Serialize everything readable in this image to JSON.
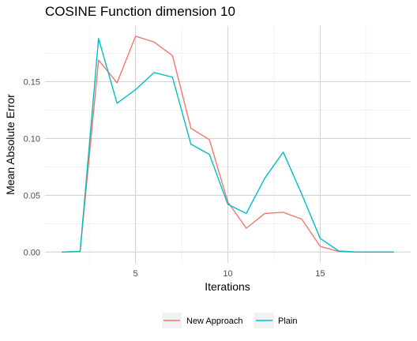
{
  "chart_data": {
    "type": "line",
    "title": "COSINE Function dimension 10",
    "xlabel": "Iterations",
    "ylabel": "Mean Absolute Error",
    "xlim": [
      0.1,
      19.9
    ],
    "ylim": [
      -0.0095,
      0.199
    ],
    "x_ticks": [
      5,
      10,
      15
    ],
    "x_tick_labels": [
      "5",
      "10",
      "15"
    ],
    "x_minor_ticks": [
      2.5,
      7.5,
      12.5,
      17.5
    ],
    "y_ticks": [
      0.0,
      0.05,
      0.1,
      0.15
    ],
    "y_tick_labels": [
      "0.00",
      "0.05",
      "0.10",
      "0.15"
    ],
    "y_minor_ticks": [
      0.025,
      0.075,
      0.125,
      0.175
    ],
    "grid": true,
    "legend_position": "bottom",
    "x": [
      1,
      2,
      3,
      4,
      5,
      6,
      7,
      8,
      9,
      10,
      11,
      12,
      13,
      14,
      15,
      16,
      17,
      18,
      19
    ],
    "series": [
      {
        "name": "New Approach",
        "color": "#F8766D",
        "values": [
          0.0,
          0.0005,
          0.169,
          0.149,
          0.19,
          0.185,
          0.173,
          0.109,
          0.099,
          0.044,
          0.021,
          0.034,
          0.035,
          0.029,
          0.005,
          0.0005,
          0.0,
          0.0,
          0.0
        ]
      },
      {
        "name": "Plain",
        "color": "#00BFC4",
        "values": [
          0.0,
          0.0005,
          0.188,
          0.131,
          0.143,
          0.158,
          0.154,
          0.095,
          0.086,
          0.042,
          0.034,
          0.065,
          0.088,
          0.051,
          0.012,
          0.001,
          0.0,
          0.0,
          0.0
        ]
      }
    ]
  }
}
